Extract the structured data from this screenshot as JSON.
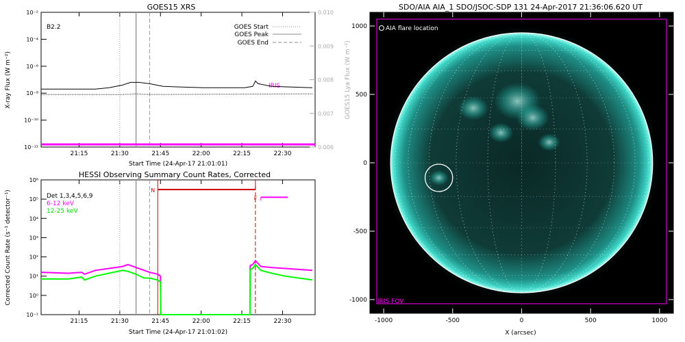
{
  "colors": {
    "magenta": "#ff00ff",
    "green": "#00ff00",
    "red": "#cc0000",
    "grey": "#aaaaaa",
    "black": "#000000",
    "sun_dark": "#0a1e1e",
    "sun_teal": "#1fb3a8",
    "sun_bright": "#9ffff0"
  },
  "chart_data": [
    {
      "type": "line",
      "title": "GOES15 XRS",
      "xlabel": "Start Time (24-Apr-17 21:01:01)",
      "ylabel": "X-ray Flux (W m⁻²)",
      "ylabel_right": "GOES15 Lya Flux (W m⁻²)",
      "x_ticks": [
        "21:15",
        "21:30",
        "21:45",
        "22:00",
        "22:15",
        "22:30"
      ],
      "y_ticks_left": [
        "10⁻¹²",
        "10⁻¹⁰",
        "10⁻⁸",
        "10⁻⁶",
        "10⁻⁴",
        "10⁻²"
      ],
      "y_ticks_right": [
        "0.006",
        "0.007",
        "0.008",
        "0.009",
        "0.010"
      ],
      "ylim_left": [
        -12,
        -2
      ],
      "ylim_right": [
        0.006,
        0.01
      ],
      "class_label": "B2.2",
      "iris_label": "IRIS",
      "legend": [
        {
          "label": "GOES Start",
          "style": "dotted"
        },
        {
          "label": "GOES Peak",
          "style": "solid"
        },
        {
          "label": "GOES End",
          "style": "dashed"
        }
      ],
      "markers_min": {
        "start": 29,
        "peak": 35,
        "end": 40
      },
      "x_range_min": [
        0,
        101
      ],
      "series": [
        {
          "name": "",
          "color": "black",
          "style": "solid",
          "x": [
            0,
            20,
            25,
            30,
            33,
            36,
            40,
            45,
            60,
            75,
            78,
            79,
            80,
            85,
            100
          ],
          "log_flux": [
            -7.7,
            -7.7,
            -7.6,
            -7.4,
            -7.2,
            -7.2,
            -7.3,
            -7.5,
            -7.6,
            -7.6,
            -7.5,
            -7.1,
            -7.3,
            -7.5,
            -7.6
          ]
        },
        {
          "name": "",
          "color": "black",
          "style": "dotted",
          "x": [
            0,
            30,
            35,
            40,
            100
          ],
          "log_flux": [
            -8.1,
            -8.1,
            -8.05,
            -8.1,
            -8.05
          ]
        },
        {
          "name": "",
          "color": "magenta",
          "style": "solid",
          "x": [
            0,
            101
          ],
          "log_flux": [
            -11.8,
            -11.8
          ]
        }
      ]
    },
    {
      "type": "line",
      "title": "HESSI Observing Summary Count Rates, Corrected",
      "xlabel": "Start Time (24-Apr-17 21:01:02)",
      "ylabel": "Corrected Count Rate (s⁻¹ detector⁻¹)",
      "x_ticks": [
        "21:15",
        "21:30",
        "21:45",
        "22:00",
        "22:15",
        "22:30"
      ],
      "y_ticks": [
        "10⁻¹",
        "10⁰",
        "10¹",
        "10²",
        "10³",
        "10⁴",
        "10⁵",
        "10⁶"
      ],
      "ylim_log": [
        -1,
        6
      ],
      "legend_title": "Det 1,3,4,5,6,9",
      "night_label": "N",
      "flare_label": "F",
      "markers_min": {
        "start": 29,
        "peak": 35,
        "end": 40,
        "night": 43,
        "saa": 79
      },
      "x_range_min": [
        0,
        101
      ],
      "night_bar": {
        "from_min": 43,
        "to_min": 79,
        "log_level": 5.5
      },
      "flare_bar": {
        "from_min": 81,
        "to_min": 91,
        "log_level": 5.1
      },
      "series": [
        {
          "name": "6-12 keV",
          "color": "magenta",
          "x": [
            0,
            10,
            15,
            16,
            20,
            25,
            30,
            32,
            35,
            38,
            40,
            43,
            44,
            44.1,
            77,
            77.1,
            78,
            79,
            81,
            85,
            90,
            95,
            100
          ],
          "log_rate": [
            1.2,
            1.15,
            1.2,
            1.1,
            1.3,
            1.4,
            1.5,
            1.6,
            1.45,
            1.3,
            1.2,
            1.1,
            1.0,
            -1.2,
            -1.2,
            1.55,
            1.6,
            1.8,
            1.5,
            1.45,
            1.4,
            1.35,
            1.3
          ]
        },
        {
          "name": "12-25 keV",
          "color": "green",
          "x": [
            0,
            10,
            15,
            16,
            20,
            25,
            30,
            32,
            35,
            38,
            40,
            43,
            44,
            44.1,
            77,
            77.1,
            78,
            79,
            81,
            85,
            90,
            95,
            100
          ],
          "log_rate": [
            0.85,
            0.85,
            0.95,
            0.8,
            1.0,
            1.15,
            1.3,
            1.25,
            1.1,
            0.9,
            0.9,
            0.8,
            0.7,
            -1.2,
            -1.2,
            1.35,
            1.4,
            1.6,
            1.3,
            1.15,
            1.0,
            0.9,
            0.8
          ]
        }
      ]
    },
    {
      "type": "heatmap",
      "title": "SDO/AIA AIA_1 SDO/JSOC-SDP 131 24-Apr-2017 21:36:06.620 UT",
      "xlabel": "X (arcsec)",
      "ylabel": "",
      "x_ticks": [
        -1000,
        -500,
        0,
        500,
        1000
      ],
      "y_ticks": [
        -1000,
        -500,
        0,
        500,
        1000
      ],
      "xlim": [
        -1100,
        1100
      ],
      "ylim": [
        -1100,
        1100
      ],
      "solar_radius_arcsec": 950,
      "flare_location_label": "AIA flare location",
      "flare_location": {
        "x": -600,
        "y": -110,
        "r": 100
      },
      "fov_label": "IRIS FOV",
      "fov": {
        "x": [
          -1050,
          1050
        ],
        "y": [
          -1030,
          1050
        ]
      }
    }
  ]
}
